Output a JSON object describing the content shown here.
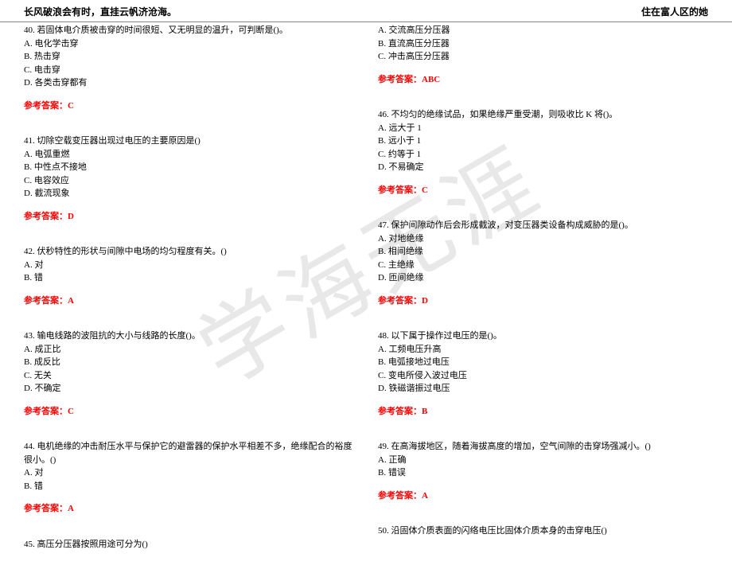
{
  "header": {
    "left": "长风破浪会有时，直挂云帆济沧海。",
    "right": "住在富人区的她"
  },
  "watermark": "学海无涯",
  "leftColumn": [
    {
      "stem": "40. 若固体电介质被击穿的时间很短、又无明显的温升，可判断是()。",
      "options": [
        "A. 电化学击穿",
        "B. 热击穿",
        "C. 电击穿",
        "D. 各类击穿都有"
      ],
      "answer": "参考答案：C"
    },
    {
      "stem": "41. 切除空载变压器出现过电压的主要原因是()",
      "options": [
        "A. 电弧重燃",
        "B. 中性点不接地",
        "C. 电容效应",
        "D. 截流现象"
      ],
      "answer": "参考答案：D"
    },
    {
      "stem": "42. 伏秒特性的形状与间隙中电场的均匀程度有关。()",
      "options": [
        "A. 对",
        "B. 错"
      ],
      "answer": "参考答案：A"
    },
    {
      "stem": "43. 输电线路的波阻抗的大小与线路的长度()。",
      "options": [
        "A. 成正比",
        "B. 成反比",
        "C. 无关",
        "D. 不确定"
      ],
      "answer": "参考答案：C"
    },
    {
      "stem": "44. 电机绝缘的冲击耐压水平与保护它的避雷器的保护水平相差不多，绝缘配合的裕度很小。()",
      "options": [
        "A. 对",
        "B. 错"
      ],
      "answer": "参考答案：A"
    },
    {
      "stem": "45. 高压分压器按照用途可分为()",
      "options": [],
      "answer": ""
    }
  ],
  "rightColumn": [
    {
      "stem": "",
      "options": [
        "A. 交流高压分压器",
        "B. 直流高压分压器",
        "C. 冲击高压分压器"
      ],
      "answer": "参考答案：ABC"
    },
    {
      "stem": "46. 不均匀的绝缘试品，如果绝缘严重受潮，则吸收比 K 将()。",
      "options": [
        "A. 远大于 1",
        "B. 远小于 1",
        "C. 约等于 1",
        "D. 不易确定"
      ],
      "answer": "参考答案：C"
    },
    {
      "stem": "47. 保护间隙动作后会形成截波，对变压器类设备构成威胁的是()。",
      "options": [
        "A. 对地绝缘",
        "B. 相间绝缘",
        "C. 主绝缘",
        "D. 匝间绝缘"
      ],
      "answer": "参考答案：D"
    },
    {
      "stem": "48. 以下属于操作过电压的是()。",
      "options": [
        "A. 工频电压升高",
        "B. 电弧接地过电压",
        "C. 变电所侵入波过电压",
        "D. 铁磁谐振过电压"
      ],
      "answer": "参考答案：B"
    },
    {
      "stem": "49. 在高海拔地区，随着海拔高度的增加，空气间隙的击穿场强减小。()",
      "options": [
        "A. 正确",
        "B. 错误"
      ],
      "answer": "参考答案：A"
    },
    {
      "stem": "50. 沿固体介质表面的闪络电压比固体介质本身的击穿电压()",
      "options": [],
      "answer": ""
    }
  ]
}
